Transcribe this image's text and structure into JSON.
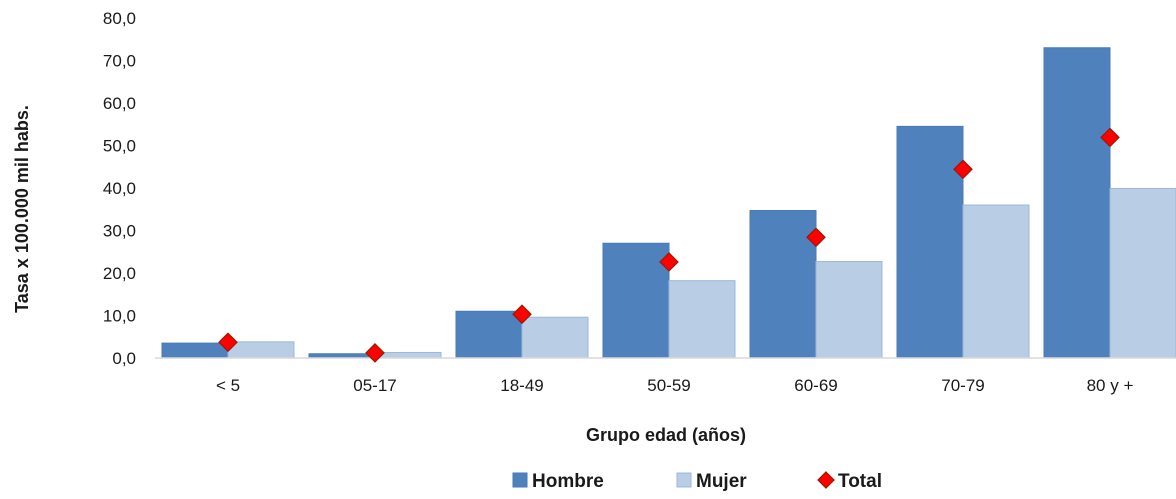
{
  "chart_data": {
    "type": "bar",
    "categories": [
      "< 5",
      "05-17",
      "18-49",
      "50-59",
      "60-69",
      "70-79",
      "80 y +"
    ],
    "series": [
      {
        "name": "Hombre",
        "kind": "bar",
        "color": "#4f81bd",
        "values": [
          3.5,
          1.0,
          11.0,
          27.0,
          34.7,
          54.5,
          73.0
        ]
      },
      {
        "name": "Mujer",
        "kind": "bar",
        "color": "#b9cde5",
        "values": [
          3.8,
          1.3,
          9.6,
          18.2,
          22.7,
          36.0,
          39.9
        ]
      },
      {
        "name": "Total",
        "kind": "marker",
        "color": "#ff0000",
        "values": [
          3.7,
          1.2,
          10.3,
          22.6,
          28.4,
          44.4,
          51.9
        ]
      }
    ],
    "xlabel": "Grupo edad (años)",
    "ylabel": "Tasa x 100.000 mil habs.",
    "ylim": [
      0,
      80
    ],
    "yticks": [
      "0,0",
      "10,0",
      "20,0",
      "30,0",
      "40,0",
      "50,0",
      "60,0",
      "70,0",
      "80,0"
    ],
    "grid": false,
    "legend": "bottom"
  }
}
